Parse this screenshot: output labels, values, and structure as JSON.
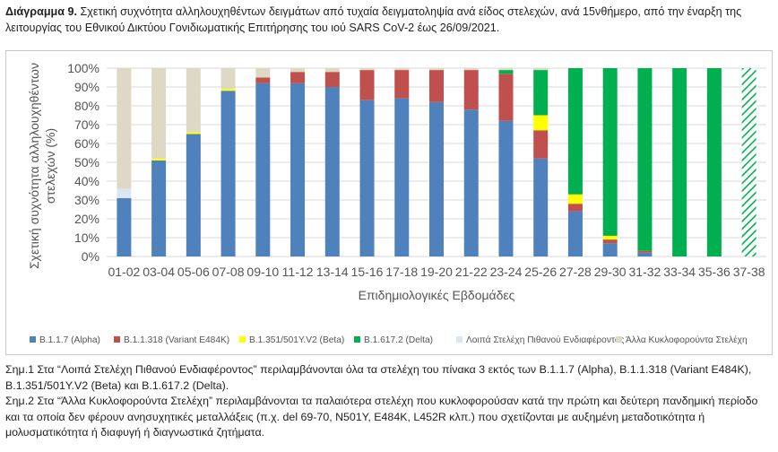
{
  "caption": {
    "label": "Διάγραμμα 9.",
    "text": " Σχετική συχνότητα αλληλουχηθέντων δειγμάτων από τυχαία δειγματοληψία ανά είδος στελεχών, ανά 15νθήμερο, από την έναρξη της λειτουργίας του Εθνικού Δικτύου Γονιδιωματικής Επιτήρησης του ιού SARS CoV-2 έως 26/09/2021."
  },
  "chart_data": {
    "type": "bar",
    "stacked": true,
    "percent": true,
    "categories": [
      "01-02",
      "03-04",
      "05-06",
      "07-08",
      "09-10",
      "11-12",
      "13-14",
      "15-16",
      "17-18",
      "19-20",
      "21-22",
      "23-24",
      "25-26",
      "27-28",
      "29-30",
      "31-32",
      "33-34",
      "35-36",
      "37-38"
    ],
    "xlabel": "Επιδημιολογικές Εβδομάδες",
    "ylabel_lines": [
      "Σχετική συχνότητα αλληλουχηθέντων",
      "στελεχών (%)"
    ],
    "ylim": [
      0,
      100
    ],
    "yticks": [
      "0%",
      "10%",
      "20%",
      "30%",
      "40%",
      "50%",
      "60%",
      "70%",
      "80%",
      "90%",
      "100%"
    ],
    "legend_position": "bottom",
    "series": [
      {
        "name": "B.1.1.7 (Alpha)",
        "color": "#4f81bd",
        "values": [
          31,
          51,
          65,
          88,
          92,
          92,
          90,
          83,
          84,
          82,
          78,
          72,
          52,
          24,
          7,
          2,
          0,
          0,
          0
        ]
      },
      {
        "name": "B.1.1.318 (Variant E484K)",
        "color": "#c0504d",
        "values": [
          0,
          0,
          0,
          0,
          3,
          6,
          8,
          16,
          15,
          17,
          21,
          25,
          15,
          4,
          2,
          1,
          0,
          0,
          0
        ]
      },
      {
        "name": "B.1.351/501Y.V2 (Beta)",
        "color": "#ffff00",
        "values": [
          0,
          1,
          1,
          1,
          0,
          0,
          0,
          0,
          0,
          0,
          0,
          0,
          8,
          5,
          2,
          0,
          0,
          0,
          0
        ]
      },
      {
        "name": "B.1.617.2 (Delta)",
        "color": "#00b050",
        "values": [
          0,
          0,
          0,
          0,
          0,
          0,
          0,
          0,
          0,
          0,
          0,
          2,
          24,
          67,
          89,
          97,
          100,
          100,
          100
        ]
      },
      {
        "name": "Λοιπά Στελέχη Πιθανού Ενδιαφέροντος",
        "color": "#dce6f2",
        "values": [
          5,
          0,
          0,
          0,
          0,
          0,
          0,
          0,
          0,
          0,
          0,
          0,
          0,
          0,
          0,
          0,
          0,
          0,
          0
        ]
      },
      {
        "name": "Άλλα Κυκλοφορούντα Στελέχη",
        "color": "#ddd9c4",
        "values": [
          64,
          48,
          34,
          11,
          5,
          2,
          2,
          1,
          1,
          1,
          1,
          1,
          1,
          0,
          0,
          0,
          0,
          0,
          0
        ]
      }
    ],
    "hatched_last_bar": true
  },
  "notes": [
    "Σημ.1 Στα “Λοιπά Στελέχη Πιθανού Ενδιαφέροντος” περιλαμβάνονται όλα τα στελέχη του πίνακα 3 εκτός των B.1.1.7 (Alpha), B.1.1.318 (Variant E484K), B.1.351/501Y.V2 (Beta) και B.1.617.2 (Delta).",
    "Σημ.2 Στα “Άλλα Κυκλοφορούντα Στελέχη” περιλαμβάνονται τα παλαιότερα στελέχη που κυκλοφορούσαν κατά την πρώτη και δεύτερη πανδημική περίοδο και τα οποία δεν φέρουν ανησυχητικές μεταλλάξεις (π.χ. del 69-70, N501Y, E484K, L452R κλπ.) που σχετίζονται με αυξημένη μεταδοτικότητα ή μολυσματικότητα ή διαφυγή ή διαγνωστικά ζητήματα."
  ]
}
